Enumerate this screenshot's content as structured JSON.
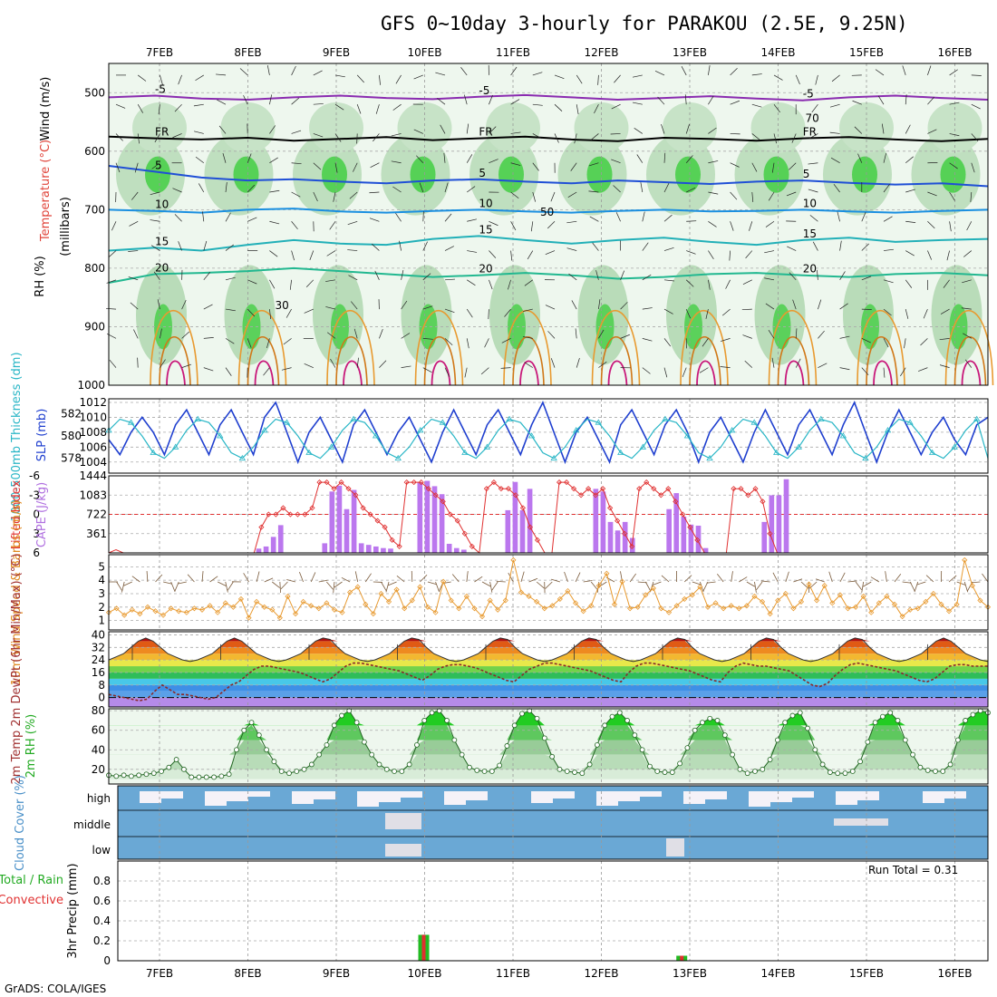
{
  "title": "GFS 0~10day 3-hourly for PARAKOU (2.5E, 9.25N)",
  "footer": "GrADS: COLA/IGES",
  "run_total": "Run Total = 0.31",
  "colors": {
    "rh_green": "#33cc33",
    "slp": "#1f3fcf",
    "thickness": "#29b6c6",
    "cape_bar": "#bb77ee",
    "lifted_index": "#e03030",
    "wind": "#e89a30",
    "cloud": "#6aa8d5",
    "rh2m": "#22bb22",
    "precip_total": "#22bb22",
    "precip_conv": "#e03030"
  },
  "chart_data": [
    {
      "type": "heatmap",
      "name_label": "profile",
      "ylabel_parts": [
        "RH (%)",
        "Temperature (°C)",
        "Wind (m/s)"
      ],
      "ylabel2": "(millibars)",
      "x_ticks": [
        "7FEB",
        "8FEB",
        "9FEB",
        "10FEB",
        "11FEB",
        "12FEB",
        "13FEB",
        "14FEB",
        "15FEB",
        "16FEB"
      ],
      "y_ticks": [
        500,
        600,
        700,
        800,
        900,
        1000
      ],
      "ylim": [
        450,
        1000
      ],
      "temp_contours": [
        {
          "label": "-5",
          "p": [
            508,
            505,
            510,
            512,
            508,
            505,
            509,
            511,
            507,
            504,
            508,
            512,
            509,
            506,
            510,
            513,
            508,
            505,
            509,
            512
          ]
        },
        {
          "label": "FR",
          "p": [
            575,
            578,
            580,
            577,
            582,
            579,
            576,
            581,
            578,
            575,
            580,
            583,
            577,
            579,
            582,
            578,
            576,
            580,
            583,
            579
          ]
        },
        {
          "label": "5",
          "p": [
            625,
            635,
            645,
            650,
            648,
            652,
            655,
            650,
            648,
            652,
            655,
            650,
            653,
            656,
            652,
            650,
            654,
            657,
            655,
            660
          ]
        },
        {
          "label": "10",
          "p": [
            700,
            702,
            705,
            700,
            698,
            703,
            705,
            702,
            700,
            703,
            705,
            702,
            700,
            703,
            702,
            700,
            703,
            705,
            702,
            700
          ]
        },
        {
          "label": "15",
          "p": [
            770,
            765,
            770,
            760,
            752,
            758,
            760,
            750,
            745,
            752,
            758,
            752,
            748,
            755,
            760,
            752,
            748,
            755,
            752,
            750
          ]
        },
        {
          "label": "20",
          "p": [
            825,
            810,
            808,
            805,
            800,
            805,
            810,
            815,
            812,
            808,
            812,
            818,
            815,
            810,
            808,
            812,
            815,
            810,
            808,
            812
          ]
        }
      ],
      "rh_labels": [
        30,
        50,
        70
      ]
    },
    {
      "type": "line",
      "name_label": "slp-thickness",
      "ylabel_left": "1000-500mb Thickness (dm)",
      "ylabel_right": "SLP (mb)",
      "thickness_ticks": [
        578,
        580,
        582
      ],
      "slp_ticks": [
        1004,
        1006,
        1008,
        1010,
        1012
      ],
      "slp": [
        1007,
        1005,
        1008,
        1010,
        1008,
        1005,
        1009,
        1011,
        1008,
        1005,
        1009,
        1011,
        1008,
        1005,
        1010,
        1012,
        1008,
        1004,
        1008,
        1010,
        1007,
        1004,
        1009,
        1011,
        1008,
        1005,
        1008,
        1010,
        1007,
        1004,
        1008,
        1011,
        1008,
        1005,
        1009,
        1011,
        1008,
        1005,
        1009,
        1012,
        1008,
        1004,
        1008,
        1010,
        1007,
        1004,
        1009,
        1011,
        1008,
        1005,
        1009,
        1011,
        1008,
        1004,
        1008,
        1010,
        1007,
        1004,
        1008,
        1011,
        1008,
        1005,
        1009,
        1011,
        1008,
        1005,
        1009,
        1012,
        1008,
        1004,
        1008,
        1011,
        1008,
        1005,
        1008,
        1010,
        1007,
        1005,
        1009,
        1010
      ],
      "thickness": [
        580.5,
        581.5,
        581.2,
        580,
        578.5,
        578,
        579,
        580.5,
        581.5,
        581.2,
        580,
        578.5,
        578,
        579,
        580.5,
        581.5,
        581.2,
        580,
        578.5,
        578,
        579,
        580.5,
        581.5,
        581.2,
        580,
        578.5,
        578,
        579,
        580.5,
        581.5,
        581.2,
        580,
        578.5,
        578,
        579,
        580.5,
        581.5,
        581.2,
        580,
        578.5,
        578,
        579,
        580.5,
        581.5,
        581.2,
        580,
        578.5,
        578,
        579,
        580.5,
        581.5,
        581.2,
        580,
        578.5,
        578,
        579,
        580.5,
        581.5,
        581.2,
        580,
        578.5,
        578,
        579,
        580.5,
        581.5,
        581.2,
        580,
        578.5,
        578,
        579,
        580.5,
        581.5,
        581.2,
        580,
        578.5,
        578,
        579,
        580.5,
        581.5,
        578
      ]
    },
    {
      "type": "bar",
      "name_label": "cape-li",
      "ylabel_left": "Lifted Index",
      "ylabel_right": "CAPE (J/kg)",
      "li_ticks": [
        "6",
        "3",
        "0",
        "-3",
        "-6"
      ],
      "cape_ticks": [
        361,
        722,
        1083,
        1444
      ],
      "cape": [
        0,
        0,
        0,
        0,
        0,
        0,
        0,
        0,
        0,
        0,
        0,
        0,
        0,
        0,
        0,
        0,
        0,
        0,
        0,
        0,
        80,
        120,
        300,
        520,
        0,
        0,
        0,
        0,
        0,
        180,
        1150,
        1260,
        820,
        1180,
        180,
        150,
        120,
        90,
        80,
        0,
        0,
        0,
        1320,
        1350,
        1250,
        1100,
        170,
        90,
        60,
        0,
        0,
        0,
        0,
        0,
        800,
        1330,
        800,
        1200,
        0,
        0,
        0,
        0,
        0,
        0,
        0,
        0,
        1200,
        1150,
        580,
        420,
        580,
        280,
        0,
        0,
        0,
        0,
        820,
        1120,
        680,
        530,
        510,
        90,
        0,
        0,
        0,
        0,
        0,
        0,
        0,
        580,
        1080,
        1080,
        1380,
        0,
        0,
        0,
        0,
        0,
        0,
        0,
        0,
        0,
        0,
        0,
        0,
        0,
        0,
        0,
        0,
        0,
        0,
        0,
        0,
        0,
        0,
        0,
        0,
        0,
        0,
        0
      ],
      "li": [
        6,
        5.5,
        6,
        6,
        6,
        6,
        6,
        6,
        6,
        6,
        6,
        6,
        6,
        6,
        6,
        6,
        6,
        6,
        6,
        6,
        6,
        2,
        0,
        0,
        -1,
        0,
        0,
        0,
        -1,
        -5,
        -5,
        -4,
        -5,
        -4,
        -3,
        -1,
        0,
        1,
        2,
        4,
        5,
        -5,
        -5,
        -5,
        -4,
        -3,
        -2,
        0,
        1,
        3,
        5,
        6,
        -4,
        -5,
        -4,
        -4,
        -3,
        -1,
        2,
        4,
        6,
        6,
        -5,
        -5,
        -4,
        -3,
        -4,
        -3,
        -4,
        -1,
        1,
        3,
        5,
        -4,
        -5,
        -4,
        -3,
        -4,
        -2,
        0,
        2,
        4,
        6,
        6,
        6,
        6,
        -4,
        -4,
        -3,
        -4,
        -2,
        3,
        6,
        6,
        6,
        6,
        6,
        6,
        6,
        6,
        6,
        6,
        6,
        6,
        6,
        6,
        6,
        6,
        6,
        6,
        6,
        6,
        6,
        6,
        6,
        6,
        6,
        6,
        6,
        6,
        6,
        6
      ]
    },
    {
      "type": "line",
      "name_label": "wind10m",
      "ylabel": "10m Wind Speed & Barbs (m/s)",
      "y_ticks": [
        1,
        2,
        3,
        4,
        5
      ],
      "values": [
        1.6,
        1.9,
        1.4,
        1.8,
        1.5,
        2.0,
        1.7,
        1.4,
        1.9,
        1.7,
        1.6,
        1.9,
        1.8,
        2.1,
        1.6,
        2.3,
        2.0,
        2.6,
        1.2,
        2.4,
        2.0,
        1.8,
        1.2,
        2.8,
        1.5,
        2.4,
        2.1,
        1.9,
        2.3,
        1.8,
        1.6,
        3.1,
        3.5,
        2.2,
        1.5,
        3.0,
        2.4,
        3.3,
        1.9,
        2.5,
        3.5,
        2.0,
        1.6,
        3.9,
        2.5,
        1.9,
        2.8,
        1.9,
        1.3,
        2.5,
        1.8,
        2.5,
        5.5,
        3.1,
        2.8,
        2.4,
        1.9,
        2.1,
        2.6,
        3.2,
        2.3,
        1.7,
        2.1,
        3.6,
        4.5,
        2.2,
        3.9,
        1.9,
        2.0,
        2.9,
        3.4,
        1.9,
        1.6,
        2.1,
        2.6,
        2.9,
        3.5,
        2.0,
        2.3,
        1.9,
        2.1,
        1.9,
        2.1,
        2.8,
        2.4,
        1.5,
        2.5,
        3.0,
        1.9,
        2.4,
        3.7,
        2.5,
        3.6,
        2.3,
        2.9,
        1.9,
        2.0,
        2.8,
        1.6,
        2.3,
        2.8,
        2.2,
        1.3,
        1.8,
        1.9,
        2.4,
        3.0,
        2.2,
        1.7,
        2.2,
        5.5,
        3.6,
        2.5,
        2.0
      ]
    },
    {
      "type": "area",
      "name_label": "temp2m",
      "ylabel": "2m Temp 2m DewPt (6hr Min/Max) (°C)",
      "y_ticks": [
        0,
        8,
        16,
        24,
        32,
        40
      ],
      "temp": [
        24,
        26,
        28,
        32,
        36,
        38,
        36,
        32,
        28,
        26,
        24,
        23,
        24,
        26,
        28,
        32,
        36,
        38,
        36,
        32,
        28,
        26,
        24,
        23,
        24,
        26,
        28,
        32,
        36,
        38,
        37,
        32,
        28,
        26,
        24,
        23,
        24,
        26,
        28,
        32,
        36,
        38,
        37,
        32,
        28,
        26,
        24,
        23,
        24,
        26,
        28,
        32,
        36,
        38,
        37,
        32,
        28,
        26,
        24,
        23,
        24,
        26,
        28,
        32,
        36,
        38,
        37,
        32,
        28,
        26,
        24,
        23,
        24,
        26,
        28,
        32,
        36,
        38,
        37,
        32,
        28,
        26,
        24,
        23,
        24,
        26,
        28,
        32,
        36,
        38,
        37,
        32,
        28,
        26,
        24,
        23,
        24,
        26,
        28,
        32,
        36,
        38,
        37,
        32,
        28,
        26,
        24,
        23,
        24,
        26,
        28,
        32,
        36,
        38,
        36,
        32,
        28,
        26,
        24,
        23
      ],
      "dewpt": [
        2,
        1,
        0,
        -1,
        -2,
        -1,
        4,
        8,
        5,
        2,
        2,
        1,
        0,
        -1,
        0,
        4,
        8,
        10,
        14,
        18,
        20,
        20,
        19,
        18,
        17,
        16,
        14,
        12,
        10,
        12,
        16,
        20,
        22,
        22,
        21,
        20,
        19,
        18,
        17,
        15,
        13,
        11,
        14,
        18,
        20,
        21,
        21,
        20,
        19,
        17,
        15,
        13,
        11,
        10,
        14,
        18,
        20,
        22,
        22,
        21,
        20,
        19,
        18,
        17,
        15,
        13,
        11,
        10,
        16,
        20,
        22,
        22,
        21,
        20,
        19,
        18,
        17,
        15,
        13,
        11,
        10,
        16,
        20,
        22,
        21,
        20,
        20,
        19,
        18,
        17,
        14,
        11,
        8,
        7,
        9,
        14,
        18,
        21,
        22,
        21,
        20,
        19,
        18,
        17,
        15,
        13,
        11,
        10,
        12,
        16,
        20,
        21,
        21,
        20,
        20,
        20
      ]
    },
    {
      "type": "area",
      "name_label": "rh2m",
      "ylabel": "2m RH (%)",
      "y_ticks": [
        20,
        40,
        60,
        80
      ],
      "values": [
        14,
        13,
        14,
        13,
        14,
        15,
        16,
        18,
        22,
        30,
        20,
        12,
        12,
        12,
        12,
        13,
        15,
        40,
        60,
        68,
        55,
        40,
        28,
        18,
        16,
        18,
        20,
        25,
        35,
        45,
        65,
        75,
        80,
        68,
        48,
        35,
        25,
        20,
        18,
        18,
        25,
        45,
        70,
        78,
        80,
        70,
        50,
        35,
        22,
        19,
        18,
        18,
        24,
        44,
        65,
        77,
        80,
        72,
        52,
        33,
        20,
        18,
        17,
        16,
        25,
        45,
        65,
        74,
        78,
        70,
        55,
        40,
        23,
        18,
        17,
        17,
        26,
        42,
        60,
        68,
        72,
        70,
        55,
        35,
        20,
        16,
        18,
        20,
        30,
        50,
        68,
        75,
        78,
        62,
        40,
        25,
        17,
        16,
        16,
        18,
        28,
        48,
        68,
        74,
        78,
        70,
        50,
        35,
        22,
        19,
        18,
        18,
        25,
        50,
        70,
        76,
        80,
        78
      ]
    },
    {
      "type": "heatmap",
      "name_label": "cloud",
      "ylabel": "Cloud Cover (%)",
      "levels": [
        "high",
        "middle",
        "low"
      ]
    },
    {
      "type": "bar",
      "name_label": "precip",
      "ylabel": "3hr Precip (mm)",
      "ylabel_side": [
        "Total / Rain",
        "Convective"
      ],
      "y_ticks": [
        "0",
        "0.2",
        "0.4",
        "0.6",
        "0.8"
      ],
      "ylim": [
        0,
        1.0
      ],
      "bars": [
        {
          "day": 3.0,
          "total": 0.26,
          "conv": 0.26
        },
        {
          "day": 5.92,
          "total": 0.05,
          "conv": 0.05
        }
      ]
    }
  ]
}
